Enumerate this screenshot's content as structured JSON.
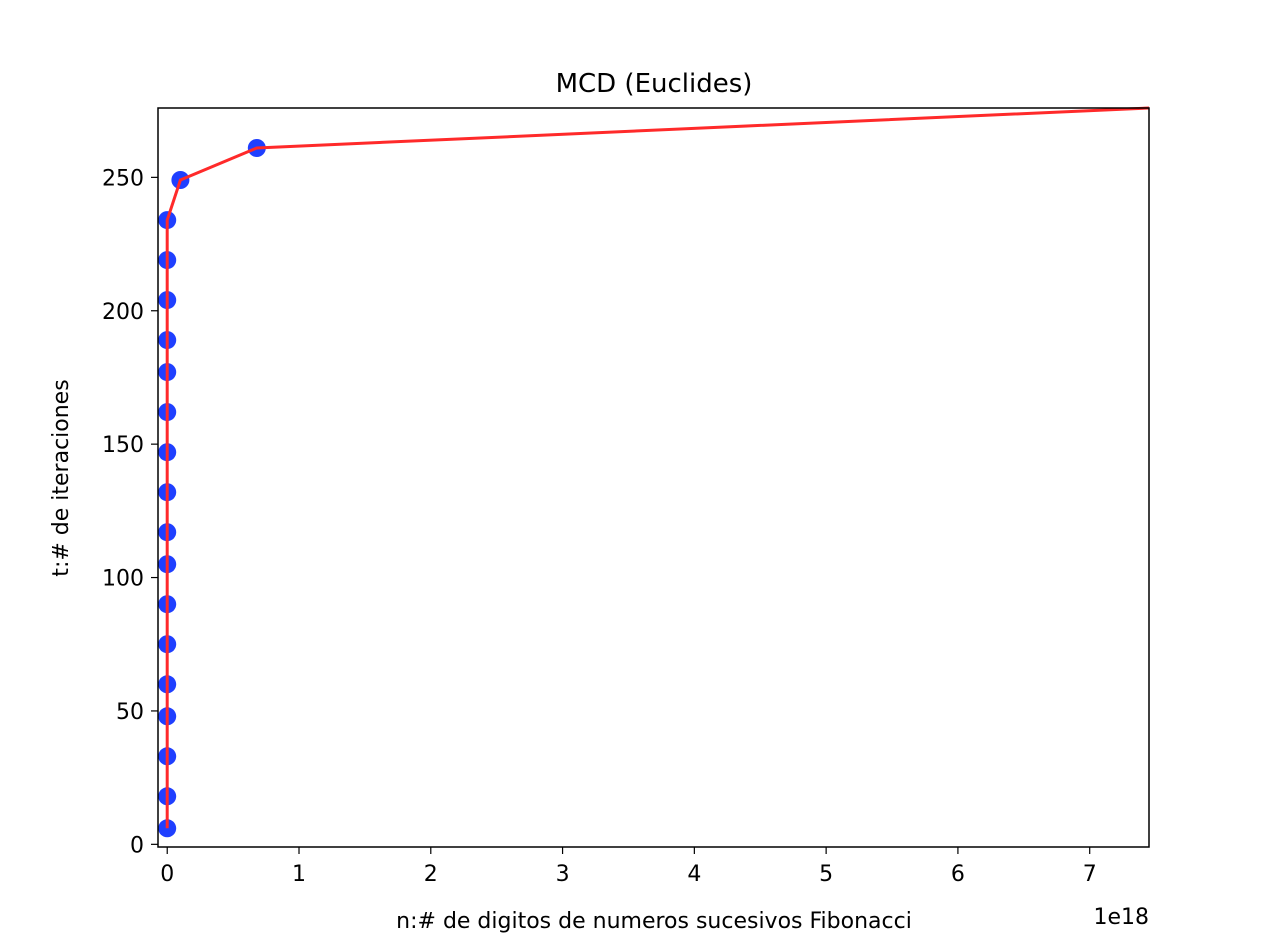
{
  "chart_data": {
    "type": "line",
    "title": "MCD (Euclides)",
    "xlabel": "n:# de digitos de numeros sucesivos Fibonacci",
    "ylabel": "t:# de iteraciones",
    "x_offset_label": "1e18",
    "xlim": [
      -7e+16,
      7.45e+18
    ],
    "ylim": [
      -1,
      276
    ],
    "x_ticks": [
      0,
      1e+18,
      2e+18,
      3e+18,
      4e+18,
      5e+18,
      6e+18,
      7e+18
    ],
    "x_tick_labels": [
      "0",
      "1",
      "2",
      "3",
      "4",
      "5",
      "6",
      "7"
    ],
    "y_ticks": [
      0,
      50,
      100,
      150,
      200,
      250
    ],
    "y_tick_labels": [
      "0",
      "50",
      "100",
      "150",
      "200",
      "250"
    ],
    "grid": false,
    "series": [
      {
        "style": "scatter",
        "color": "#1f3fff",
        "x": [
          0,
          0,
          0,
          0,
          0,
          0,
          0,
          0,
          0,
          0,
          0,
          0,
          0,
          0,
          0,
          0,
          0,
          1e+17,
          6.8e+17
        ],
        "y": [
          6,
          18,
          33,
          48,
          60,
          75,
          90,
          105,
          117,
          132,
          147,
          162,
          177,
          189,
          204,
          219,
          234,
          249,
          261
        ]
      },
      {
        "style": "line",
        "color": "#ff2a2a",
        "x": [
          0,
          0,
          1e+17,
          6.8e+17,
          7.45e+18
        ],
        "y": [
          6,
          234,
          249,
          261,
          276
        ]
      }
    ]
  }
}
